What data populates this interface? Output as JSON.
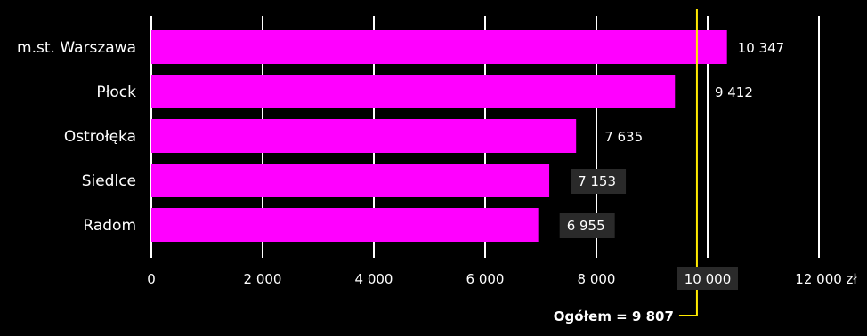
{
  "chart_data": {
    "type": "bar",
    "orientation": "horizontal",
    "categories": [
      "m.st. Warszawa",
      "Płock",
      "Ostrołęka",
      "Siedlce",
      "Radom"
    ],
    "values": [
      10347,
      9412,
      7635,
      7153,
      6955
    ],
    "value_labels": [
      "10 347",
      "9 412",
      "7 635",
      "7 153",
      "6 955"
    ],
    "x_ticks": [
      0,
      2000,
      4000,
      6000,
      8000,
      10000,
      12000
    ],
    "x_tick_labels": [
      "0",
      "2 000",
      "4 000",
      "6 000",
      "8 000",
      "10 000",
      "12 000 zł"
    ],
    "xlim": [
      0,
      12000
    ],
    "grid": "vertical",
    "reference_line": {
      "value": 9807,
      "label": "Ogółem = 9 807"
    },
    "colors": {
      "bar": "#ff00ff",
      "background": "#000000",
      "grid": "#ffffff",
      "reference": "#ffea00",
      "text": "#ffffff",
      "label_box": "#2a2a2a"
    }
  }
}
